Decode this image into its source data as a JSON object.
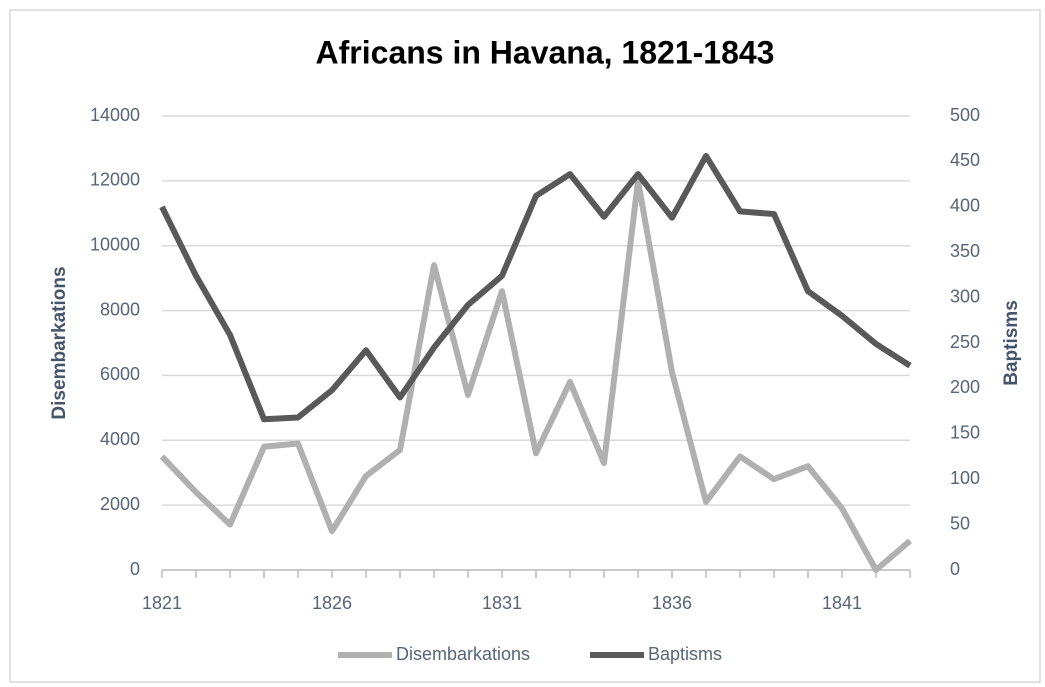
{
  "chart_data": {
    "type": "line",
    "title": "Africans in Havana, 1821-1843",
    "x": [
      1821,
      1822,
      1823,
      1824,
      1825,
      1826,
      1827,
      1828,
      1829,
      1830,
      1831,
      1832,
      1833,
      1834,
      1835,
      1836,
      1837,
      1838,
      1839,
      1840,
      1841,
      1842,
      1843
    ],
    "series": [
      {
        "name": "Disembarkations",
        "color": "#b0b0b0",
        "axis": "y",
        "values": [
          3500,
          2400,
          1400,
          3800,
          3900,
          1200,
          2900,
          3700,
          9400,
          5400,
          8600,
          3600,
          5800,
          3300,
          12000,
          6100,
          2100,
          3500,
          2800,
          3200,
          1900,
          0,
          900
        ]
      },
      {
        "name": "Baptisms",
        "color": "#595959",
        "axis": "y2",
        "values": [
          400,
          324,
          259,
          166,
          168,
          198,
          242,
          190,
          245,
          292,
          324,
          412,
          436,
          389,
          436,
          388,
          456,
          395,
          392,
          307,
          280,
          249,
          225
        ]
      }
    ],
    "xlim": [
      1821,
      1843
    ],
    "xticks": [
      1821,
      1826,
      1831,
      1836,
      1841
    ],
    "ylim": [
      0,
      14000
    ],
    "yticks": [
      0,
      2000,
      4000,
      6000,
      8000,
      10000,
      12000,
      14000
    ],
    "y2lim": [
      0,
      500
    ],
    "y2ticks": [
      0,
      50,
      100,
      150,
      200,
      250,
      300,
      350,
      400,
      450,
      500
    ],
    "ylabel": "Disembarkations",
    "y2label": "Baptisms",
    "grid": true,
    "legend": "bottom"
  }
}
